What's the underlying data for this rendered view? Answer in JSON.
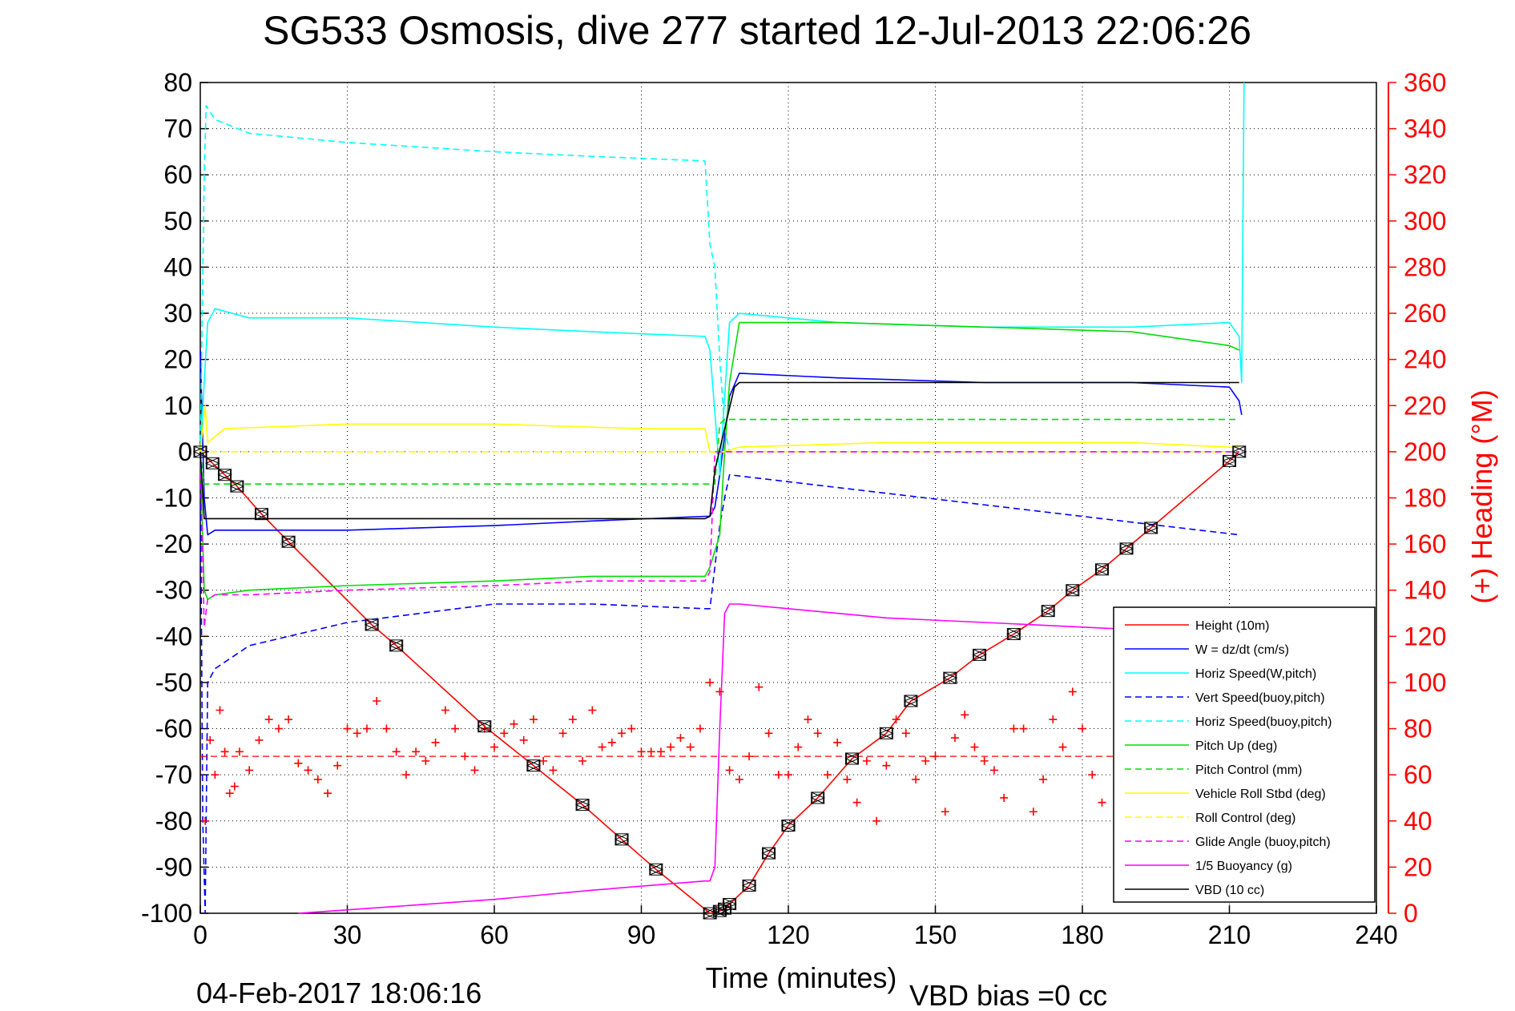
{
  "chart_data": {
    "type": "line",
    "title": "SG533 Osmosis, dive 277 started 12-Jul-2013 22:06:26",
    "xlabel": "Time (minutes)",
    "ylabel": "",
    "y2label": "(+) Heading (°M)",
    "xlim": [
      0,
      240
    ],
    "ylim": [
      -100,
      80
    ],
    "y2lim": [
      0,
      360
    ],
    "xticks": [
      "0",
      "30",
      "60",
      "90",
      "120",
      "150",
      "180",
      "210",
      "240"
    ],
    "yticks": [
      "80",
      "70",
      "60",
      "50",
      "40",
      "30",
      "20",
      "10",
      "0",
      "-10",
      "-20",
      "-30",
      "-40",
      "-50",
      "-60",
      "-70",
      "-80",
      "-90",
      "-100"
    ],
    "y2ticks": [
      "360",
      "340",
      "320",
      "300",
      "280",
      "260",
      "240",
      "220",
      "200",
      "180",
      "160",
      "140",
      "120",
      "100",
      "80",
      "60",
      "40",
      "20",
      "0"
    ],
    "grid": true,
    "legend_position": "bottom-right",
    "footer_left": "04-Feb-2017 18:06:16",
    "footer_right": "VBD bias =0 cc",
    "series": [
      {
        "name": "Height (10m)",
        "color": "#ff0000",
        "style": "solid",
        "marker": "triangle-box",
        "x": [
          0,
          2.5,
          5,
          7.5,
          12.5,
          18,
          35,
          40,
          58,
          68,
          78,
          86,
          93,
          104,
          106,
          107,
          108,
          112,
          116,
          120,
          126,
          133,
          140,
          145,
          153,
          159,
          166,
          173,
          178,
          184,
          189,
          194,
          210,
          212
        ],
        "y": [
          0,
          -2.5,
          -5,
          -7.5,
          -13.5,
          -19.5,
          -37.5,
          -42,
          -59.5,
          -68,
          -76.5,
          -84,
          -90.5,
          -100,
          -99.5,
          -99,
          -98,
          -94,
          -87,
          -81,
          -75,
          -66.5,
          -61,
          -54,
          -49,
          -44,
          -39.5,
          -34.5,
          -30,
          -25.5,
          -21,
          -16.5,
          -2,
          0
        ]
      },
      {
        "name": "W = dz/dt (cm/s)",
        "color": "#0000ff",
        "style": "solid",
        "x": [
          0,
          0.8,
          1.5,
          3,
          10,
          30,
          60,
          80,
          103,
          104,
          105,
          106,
          108,
          110,
          130,
          160,
          190,
          210,
          212,
          212.5
        ],
        "y": [
          22,
          -10,
          -18,
          -17,
          -17,
          -17,
          -16,
          -15,
          -14,
          -14,
          -12,
          -5,
          12,
          17,
          16,
          15,
          15,
          14,
          11,
          8
        ]
      },
      {
        "name": "Horiz Speed(W,pitch)",
        "color": "#00ffff",
        "style": "solid",
        "x": [
          0,
          0.8,
          1.5,
          3,
          10,
          30,
          60,
          80,
          103,
          104,
          106,
          107,
          108,
          110,
          130,
          160,
          190,
          210,
          212,
          212.5,
          213
        ],
        "y": [
          0,
          15,
          28,
          31,
          29,
          29,
          27,
          26,
          25,
          22,
          -5,
          12,
          28,
          30,
          28,
          27,
          27,
          28,
          25,
          15,
          80
        ]
      },
      {
        "name": "Vert Speed(buoy,pitch)",
        "color": "#0000ff",
        "style": "dashed",
        "x": [
          0,
          0.5,
          1,
          1.5,
          3,
          10,
          30,
          60,
          80,
          103,
          104,
          106,
          107,
          108,
          212
        ],
        "y": [
          0,
          -80,
          -100,
          -50,
          -47,
          -42,
          -37,
          -33,
          -33,
          -34,
          -34,
          -16,
          -10,
          -5,
          -18
        ]
      },
      {
        "name": "Horiz Speed(buoy,pitch)",
        "color": "#00ffff",
        "style": "dashed",
        "x": [
          0,
          0.8,
          1.2,
          3,
          10,
          30,
          60,
          80,
          103,
          104,
          105,
          106,
          107,
          108,
          212
        ],
        "y": [
          0,
          60,
          75,
          72,
          69,
          67,
          65,
          64,
          63,
          45,
          40,
          20,
          5,
          0,
          0
        ]
      },
      {
        "name": "Pitch Up (deg)",
        "color": "#00dd00",
        "style": "solid",
        "x": [
          0,
          0.8,
          1.5,
          3,
          10,
          30,
          60,
          80,
          103,
          104,
          106,
          107,
          108,
          110,
          130,
          160,
          190,
          210,
          212
        ],
        "y": [
          0,
          -30,
          -32,
          -31,
          -30,
          -29,
          -28,
          -27,
          -27,
          -25,
          -18,
          0,
          15,
          28,
          28,
          27,
          26,
          23,
          22
        ]
      },
      {
        "name": "Pitch Control (mm)",
        "color": "#00dd00",
        "style": "dashed",
        "x": [
          0,
          0.8,
          1.5,
          103,
          105,
          106,
          107,
          212
        ],
        "y": [
          0,
          -7,
          -7,
          -7,
          -7,
          6,
          7,
          7
        ]
      },
      {
        "name": "Vehicle Roll Stbd (deg)",
        "color": "#ffff00",
        "style": "solid",
        "x": [
          0,
          1,
          1.5,
          5,
          30,
          60,
          90,
          103,
          104,
          107,
          110,
          140,
          170,
          190,
          210,
          212
        ],
        "y": [
          0,
          10,
          2,
          5,
          6,
          6,
          5,
          5,
          0,
          0,
          1,
          2,
          2,
          2,
          1,
          1
        ]
      },
      {
        "name": "Roll Control (deg)",
        "color": "#ffff00",
        "style": "dashed",
        "x": [
          0,
          1.5,
          103,
          104,
          212
        ],
        "y": [
          0,
          0,
          0,
          0,
          0
        ]
      },
      {
        "name": "Glide Angle (buoy,pitch)",
        "color": "#ff00ff",
        "style": "dashed",
        "x": [
          0,
          0.8,
          1.5,
          3,
          10,
          30,
          60,
          80,
          103,
          104,
          105,
          212
        ],
        "y": [
          0,
          -38,
          -32,
          -31,
          -31,
          -30,
          -29,
          -28,
          -28,
          -26,
          0,
          0
        ]
      },
      {
        "name": "1/5 Buoyancy (g)",
        "color": "#ff00ff",
        "style": "solid",
        "x": [
          20,
          40,
          60,
          80,
          103,
          104,
          105,
          106,
          107,
          108,
          110,
          120,
          140,
          160,
          180,
          190
        ],
        "y": [
          -100,
          -98.5,
          -97,
          -95,
          -93,
          -93,
          -90,
          -60,
          -35,
          -33,
          -33,
          -34,
          -36,
          -37,
          -38,
          -38.5
        ]
      },
      {
        "name": "VBD (10 cc)",
        "color": "#000000",
        "style": "solid",
        "x": [
          0,
          0.8,
          1.5,
          103,
          104,
          105,
          107,
          109,
          110,
          212
        ],
        "y": [
          0,
          -14.5,
          -14.5,
          -14.5,
          -14,
          -4,
          5,
          14,
          15,
          15
        ]
      }
    ],
    "heading_series": {
      "name": "Heading",
      "color": "#ff0000",
      "marker": "plus",
      "axis": "right",
      "mean": 68,
      "x": [
        1,
        2,
        3,
        4,
        5,
        6,
        7,
        8,
        10,
        12,
        14,
        16,
        18,
        20,
        22,
        24,
        26,
        28,
        30,
        32,
        34,
        36,
        38,
        40,
        42,
        44,
        46,
        48,
        50,
        52,
        54,
        56,
        58,
        60,
        62,
        64,
        66,
        68,
        70,
        72,
        74,
        76,
        78,
        80,
        82,
        84,
        86,
        88,
        90,
        92,
        94,
        96,
        98,
        100,
        102,
        104,
        106,
        108,
        110,
        112,
        114,
        116,
        118,
        120,
        122,
        124,
        126,
        128,
        130,
        132,
        134,
        136,
        138,
        140,
        142,
        144,
        146,
        148,
        150,
        152,
        154,
        156,
        158,
        160,
        162,
        164,
        166,
        168,
        170,
        172,
        174,
        176,
        178,
        180,
        182,
        184
      ],
      "y": [
        40,
        75,
        60,
        88,
        70,
        52,
        55,
        70,
        62,
        75,
        84,
        80,
        84,
        65,
        62,
        58,
        52,
        64,
        80,
        78,
        80,
        92,
        80,
        70,
        60,
        70,
        66,
        74,
        88,
        80,
        68,
        62,
        80,
        72,
        78,
        82,
        75,
        84,
        66,
        62,
        78,
        84,
        66,
        88,
        72,
        74,
        78,
        80,
        70,
        70,
        70,
        72,
        76,
        72,
        80,
        100,
        96,
        62,
        58,
        68,
        98,
        78,
        60,
        60,
        72,
        84,
        78,
        60,
        74,
        58,
        48,
        66,
        40,
        64,
        84,
        78,
        58,
        66,
        68,
        44,
        76,
        86,
        72,
        66,
        62,
        50,
        80,
        80,
        44,
        58,
        84,
        72,
        96,
        80,
        60,
        48
      ]
    }
  }
}
